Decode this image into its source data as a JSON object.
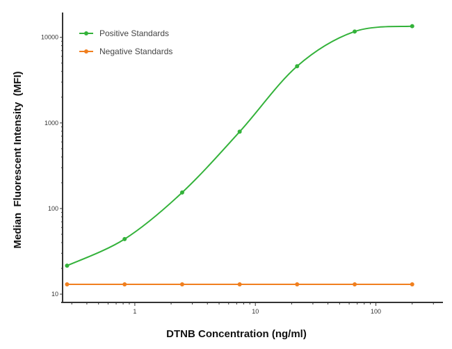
{
  "chart_data": {
    "type": "line",
    "xlabel": "DTNB Concentration (ng/ml)",
    "ylabel": "Median  Fluorescent Intensity  (MFI)",
    "xscale": "log",
    "yscale": "log",
    "xlim": [
      0.245,
      360
    ],
    "ylim": [
      8,
      19500
    ],
    "xticks": [
      1,
      10,
      100
    ],
    "xtick_labels": [
      "1",
      "10",
      "100"
    ],
    "yticks": [
      10,
      100,
      1000,
      10000
    ],
    "ytick_labels": [
      "10",
      "100",
      "1000",
      "10000"
    ],
    "legend_position": "top-left",
    "grid": false,
    "series": [
      {
        "name": "Positive Standards",
        "color": "#33b23a",
        "x": [
          0.274,
          0.823,
          2.47,
          7.41,
          22.2,
          66.7,
          200
        ],
        "y": [
          21.5,
          44,
          154,
          790,
          4600,
          11700,
          13500
        ]
      },
      {
        "name": "Negative Standards",
        "color": "#f07f1e",
        "x": [
          0.274,
          0.823,
          2.47,
          7.41,
          22.2,
          66.7,
          200
        ],
        "y": [
          13,
          13,
          13,
          13,
          13,
          13,
          13
        ]
      }
    ]
  }
}
